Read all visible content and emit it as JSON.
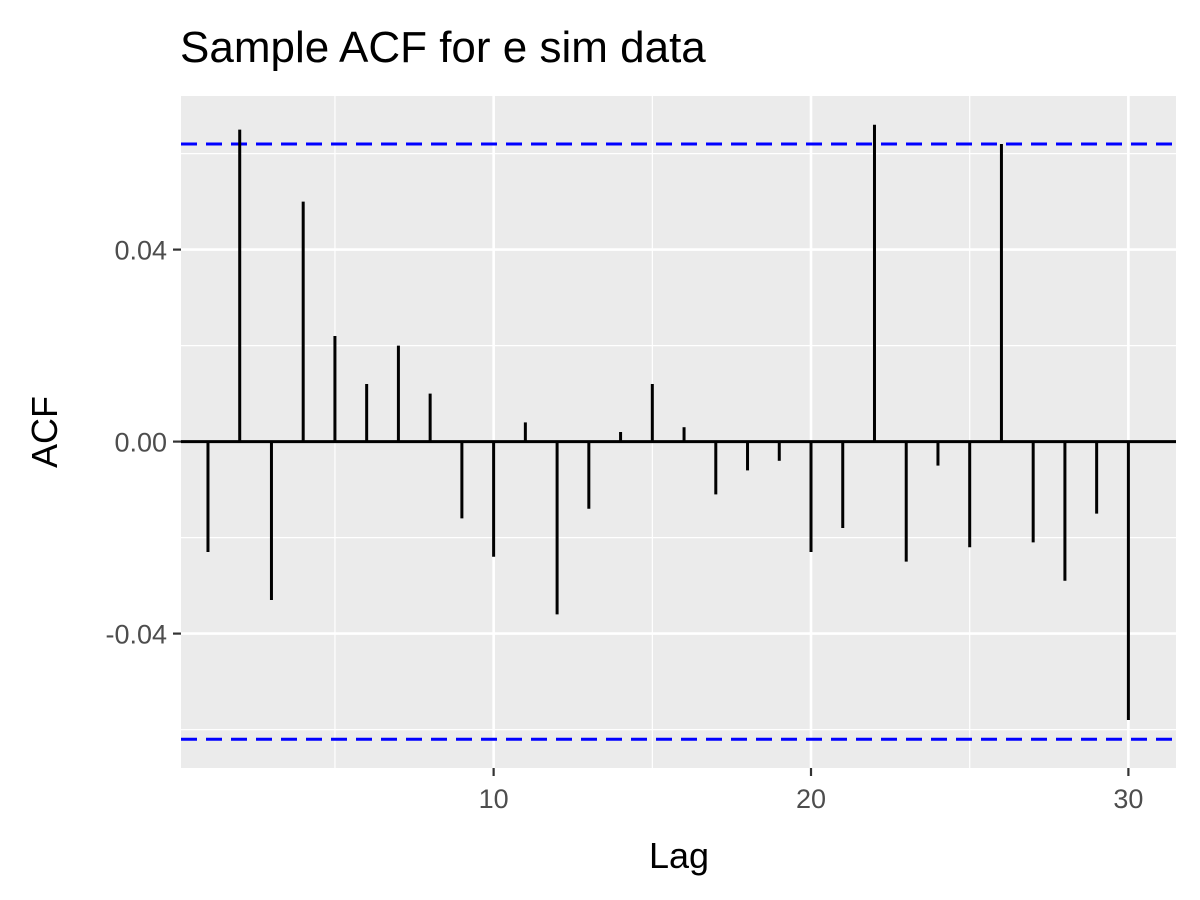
{
  "chart_data": {
    "type": "bar",
    "title": "Sample ACF for e sim data",
    "xlabel": "Lag",
    "ylabel": "ACF",
    "x": [
      1,
      2,
      3,
      4,
      5,
      6,
      7,
      8,
      9,
      10,
      11,
      12,
      13,
      14,
      15,
      16,
      17,
      18,
      19,
      20,
      21,
      22,
      23,
      24,
      25,
      26,
      27,
      28,
      29,
      30
    ],
    "values": [
      -0.023,
      0.065,
      -0.033,
      0.05,
      0.022,
      0.012,
      0.02,
      0.01,
      -0.016,
      -0.024,
      0.004,
      -0.036,
      -0.014,
      0.002,
      0.012,
      0.003,
      -0.011,
      -0.006,
      -0.004,
      -0.023,
      -0.018,
      0.066,
      -0.025,
      -0.005,
      -0.022,
      0.062,
      -0.021,
      -0.029,
      -0.015,
      -0.058
    ],
    "confidence_bound": 0.062,
    "xlim": [
      0.15,
      31.5
    ],
    "ylim": [
      -0.068,
      0.072
    ],
    "x_ticks": [
      10,
      20,
      30
    ],
    "x_tick_labels": [
      "10",
      "20",
      "30"
    ],
    "y_ticks": [
      -0.04,
      0,
      0.04
    ],
    "y_tick_labels": [
      "-0.04",
      "0.00",
      "0.04"
    ],
    "grid": true,
    "colors": {
      "panel": "#ebebeb",
      "grid": "#ffffff",
      "bars": "#000000",
      "zero_line": "#000000",
      "confidence_line": "#0000ff"
    }
  }
}
